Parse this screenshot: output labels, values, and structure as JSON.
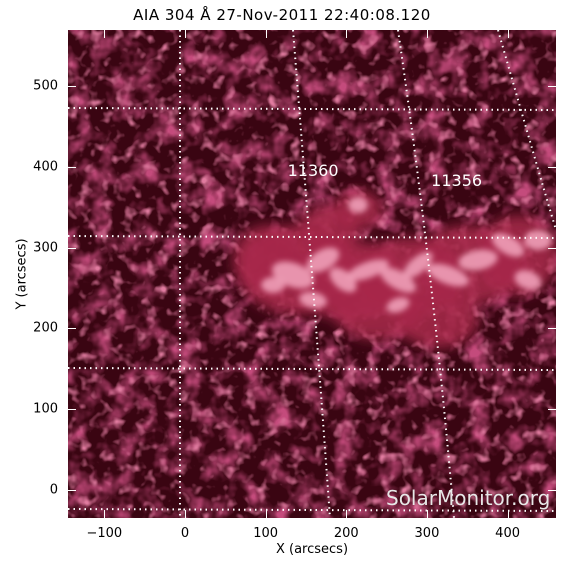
{
  "title": "AIA 304 Å 27-Nov-2011 22:40:08.120",
  "axes": {
    "xlabel": "X (arcsecs)",
    "ylabel": "Y (arcsecs)",
    "xlim": [
      -145,
      460
    ],
    "ylim": [
      -35,
      570
    ],
    "xticks": [
      "−100",
      "0",
      "100",
      "200",
      "300",
      "400"
    ],
    "yticks": [
      "0",
      "100",
      "200",
      "300",
      "400",
      "500"
    ],
    "xtick_values": [
      -100,
      0,
      100,
      200,
      300,
      400
    ],
    "ytick_values": [
      0,
      100,
      200,
      300,
      400,
      500
    ]
  },
  "active_regions": [
    {
      "label": "11360",
      "x": 157,
      "y": 395
    },
    {
      "label": "11356",
      "x": 335,
      "y": 383
    }
  ],
  "watermark": "SolarMonitor.org",
  "colors": {
    "background": "#3a0512",
    "plasma_dim": "#6a1028",
    "plasma_mid": "#a8284a",
    "plasma_bright": "#f0a0b8",
    "grid": "#ffffff"
  }
}
